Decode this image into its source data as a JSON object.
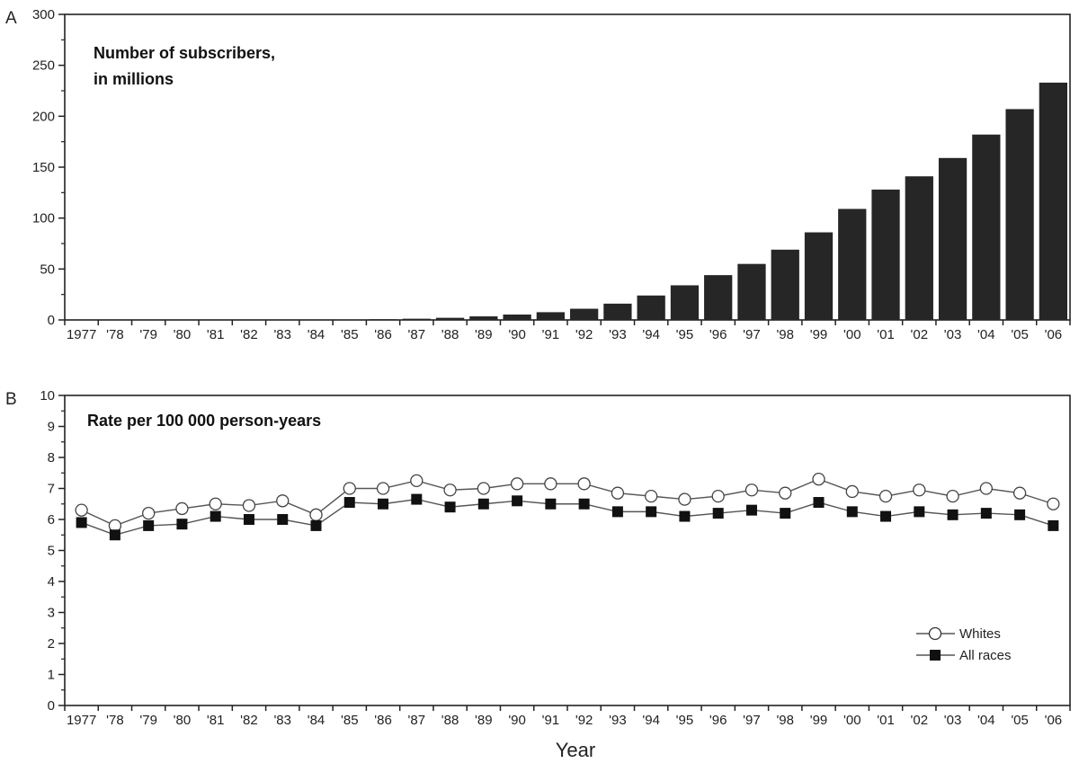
{
  "chart_data": [
    {
      "type": "bar",
      "panel_label": "A",
      "title": "Number of subscribers,",
      "title_line2": "in millions",
      "xlabel": "",
      "ylabel": "",
      "ylim": [
        0,
        300
      ],
      "yticks": [
        0,
        50,
        100,
        150,
        200,
        250,
        300
      ],
      "grid": false,
      "bar_color": "#262626",
      "categories": [
        "1977",
        "'78",
        "'79",
        "'80",
        "'81",
        "'82",
        "'83",
        "'84",
        "'85",
        "'86",
        "'87",
        "'88",
        "'89",
        "'90",
        "'91",
        "'92",
        "'93",
        "'94",
        "'95",
        "'96",
        "'97",
        "'98",
        "'99",
        "'00",
        "'01",
        "'02",
        "'03",
        "'04",
        "'05",
        "'06"
      ],
      "values": [
        0,
        0,
        0,
        0,
        0,
        0,
        0,
        0.1,
        0.3,
        0.7,
        1.2,
        2.1,
        3.5,
        5.3,
        7.6,
        11,
        16,
        24,
        34,
        44,
        55,
        69,
        86,
        109,
        128,
        141,
        159,
        182,
        207,
        233
      ]
    },
    {
      "type": "line",
      "panel_label": "B",
      "title": "Rate per 100 000 person-years",
      "xlabel": "Year",
      "ylabel": "",
      "ylim": [
        0,
        10
      ],
      "yticks": [
        0,
        1,
        2,
        3,
        4,
        5,
        6,
        7,
        8,
        9,
        10
      ],
      "grid": false,
      "legend_position": "bottom-right",
      "categories": [
        "1977",
        "'78",
        "'79",
        "'80",
        "'81",
        "'82",
        "'83",
        "'84",
        "'85",
        "'86",
        "'87",
        "'88",
        "'89",
        "'90",
        "'91",
        "'92",
        "'93",
        "'94",
        "'95",
        "'96",
        "'97",
        "'98",
        "'99",
        "'00",
        "'01",
        "'02",
        "'03",
        "'04",
        "'05",
        "'06"
      ],
      "series": [
        {
          "name": "Whites",
          "marker": "open-circle",
          "values": [
            6.3,
            5.8,
            6.2,
            6.35,
            6.5,
            6.45,
            6.6,
            6.15,
            7.0,
            7.0,
            7.25,
            6.95,
            7.0,
            7.15,
            7.15,
            7.15,
            6.85,
            6.75,
            6.65,
            6.75,
            6.95,
            6.85,
            7.3,
            6.9,
            6.75,
            6.95,
            6.75,
            7.0,
            6.85,
            6.5
          ]
        },
        {
          "name": "All races",
          "marker": "filled-square",
          "values": [
            5.9,
            5.5,
            5.8,
            5.85,
            6.1,
            6.0,
            6.0,
            5.8,
            6.55,
            6.5,
            6.65,
            6.4,
            6.5,
            6.6,
            6.5,
            6.5,
            6.25,
            6.25,
            6.1,
            6.2,
            6.3,
            6.2,
            6.55,
            6.25,
            6.1,
            6.25,
            6.15,
            6.2,
            6.15,
            5.8
          ]
        }
      ]
    }
  ]
}
